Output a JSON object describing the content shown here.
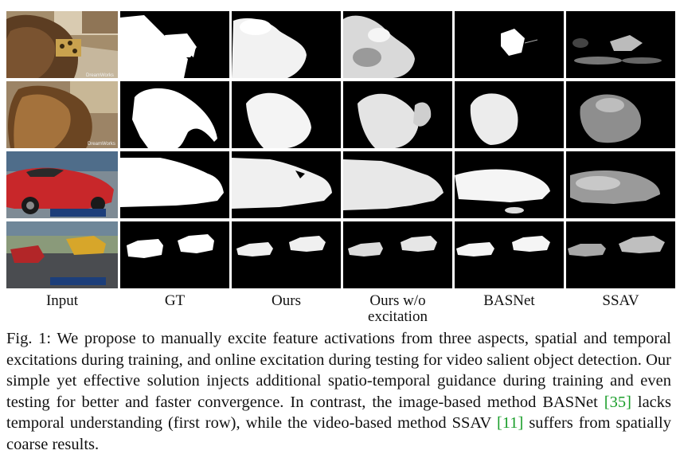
{
  "figure": {
    "columns": [
      "Input",
      "GT",
      "Ours",
      "Ours w/o excitation",
      "BASNet",
      "SSAV"
    ],
    "column_lines": [
      [
        "Input"
      ],
      [
        "GT"
      ],
      [
        "Ours"
      ],
      [
        "Ours w/o",
        "excitation"
      ],
      [
        "BASNet"
      ],
      [
        "SSAV"
      ]
    ],
    "input_watermarks": [
      "DreamWorks",
      "DreamWorks",
      "",
      ""
    ],
    "rows": [
      "cat frame 1",
      "cat frame 2",
      "red car frame",
      "drag race frame"
    ]
  },
  "caption": {
    "label": "Fig. 1:",
    "text_1": " We propose to manually excite feature activations from three aspects, spatial and temporal excitations during training, and online excitation during testing for video salient object detection. Our simple yet effective solution injects additional spatio-temporal guidance during training and even testing for better and faster convergence. In contrast, the image-based method BASNet ",
    "cite_1": "[35]",
    "text_2": " lacks temporal understanding (first row), while the video-based method SSAV ",
    "cite_2": "[11]",
    "text_3": " suffers from spatially coarse results."
  },
  "colors": {
    "citation": "#1a9e2a",
    "mask_background": "#000000",
    "mask_foreground": "#ffffff"
  }
}
